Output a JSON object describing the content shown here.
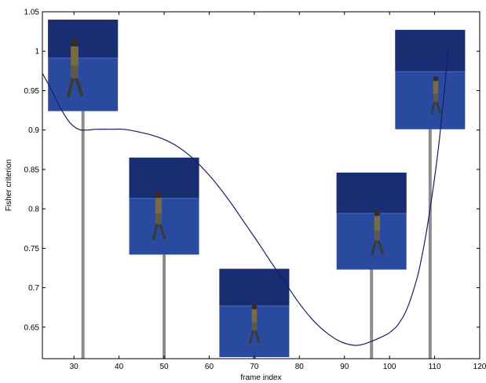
{
  "chart_data": {
    "type": "line",
    "title": "",
    "xlabel": "frame index",
    "ylabel": "Fisher criterion",
    "xlim": [
      23,
      120
    ],
    "ylim": [
      0.61,
      1.05
    ],
    "xticks": [
      30,
      40,
      50,
      60,
      70,
      80,
      90,
      100,
      110,
      120
    ],
    "yticks": [
      0.65,
      0.7,
      0.75,
      0.8,
      0.85,
      0.9,
      0.95,
      1,
      1.05
    ],
    "grid": false,
    "colors": {
      "curve": "#1a1a6e",
      "marker": "#8c8c8c",
      "thumb_bg": "#2a4aa0",
      "thumb_dark": "#16286a"
    },
    "series": [
      {
        "x": [
          23,
          25,
          27,
          29,
          31,
          33,
          35,
          38,
          41,
          44,
          47,
          50,
          53,
          56,
          59,
          62,
          65,
          68,
          71,
          74,
          77,
          80,
          83,
          86,
          89,
          92,
          94,
          96,
          98,
          100,
          102,
          104,
          106,
          107,
          108,
          109,
          110,
          111,
          112,
          113
        ],
        "y": [
          0.972,
          0.951,
          0.928,
          0.91,
          0.901,
          0.9,
          0.901,
          0.901,
          0.901,
          0.898,
          0.894,
          0.888,
          0.879,
          0.866,
          0.849,
          0.829,
          0.806,
          0.781,
          0.756,
          0.73,
          0.705,
          0.68,
          0.659,
          0.643,
          0.632,
          0.627,
          0.628,
          0.632,
          0.637,
          0.643,
          0.654,
          0.675,
          0.71,
          0.735,
          0.765,
          0.8,
          0.84,
          0.885,
          0.94,
          1.002
        ]
      }
    ],
    "markers": [
      {
        "frame": 32,
        "thumb_top": 1.04,
        "thumb_bottom": 0.924
      },
      {
        "frame": 50,
        "thumb_top": 0.865,
        "thumb_bottom": 0.742
      },
      {
        "frame": 70,
        "thumb_top": 0.724,
        "thumb_bottom": 0.612
      },
      {
        "frame": 96,
        "thumb_top": 0.846,
        "thumb_bottom": 0.723
      },
      {
        "frame": 109,
        "thumb_top": 1.027,
        "thumb_bottom": 0.901
      }
    ]
  }
}
